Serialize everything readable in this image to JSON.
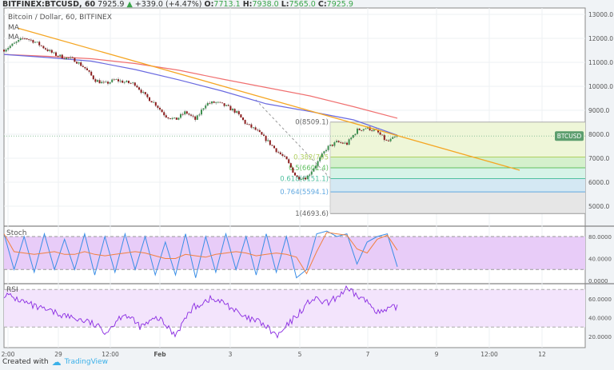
{
  "header": {
    "symbol": "BITFINEX:BTCUSD, 60",
    "last": "7925.9",
    "change": "+339.0 (+4.47%)",
    "o_label": "O:",
    "o": "7713.1",
    "h_label": "H:",
    "h": "7938.0",
    "l_label": "L:",
    "l": "7565.0",
    "c_label": "C:",
    "c": "7925.9"
  },
  "legend": {
    "title": "Bitcoin / Dollar, 60, BITFINEX",
    "ma1": "MA",
    "ma2": "MA"
  },
  "price_badge": "BTCUSD",
  "colors": {
    "up": "#3d8f4f",
    "down": "#8b1c1c",
    "ma_red": "#f07070",
    "ma_blue": "#6a6ae0",
    "trend": "#f5a623",
    "stoch_k": "#3a8ee6",
    "stoch_d": "#f08040",
    "rsi": "#8a2be2",
    "badge": "#5c9e6e"
  },
  "chart_data": [
    {
      "type": "candlestick",
      "title": "Bitcoin / Dollar, 60, BITFINEX",
      "y_ticks": [
        "13000.0",
        "12000.0",
        "11000.0",
        "10000.0",
        "9000.0",
        "8000.0",
        "7000.0",
        "6000.0",
        "5000.0"
      ],
      "ylim": [
        4500,
        13200
      ],
      "x_ticks": [
        "2:00",
        "29",
        "12:00",
        "Feb",
        "3",
        "5",
        "7",
        "9",
        "12:00",
        "12"
      ],
      "close_path": [
        11530,
        11770,
        12030,
        11870,
        11600,
        11330,
        11200,
        11100,
        10770,
        10270,
        10100,
        10270,
        10170,
        10100,
        9600,
        9270,
        8770,
        8600,
        8930,
        8600,
        9270,
        9330,
        9170,
        8930,
        8430,
        8170,
        7770,
        7330,
        6930,
        6200,
        6200,
        6770,
        7430,
        7670,
        7600,
        8170,
        8270,
        8100,
        7670,
        7925.9
      ],
      "ma_slow": [
        11330,
        11250,
        11150,
        10950,
        10670,
        10300,
        9950,
        9600,
        9150,
        8670
      ],
      "ma_fast": [
        11330,
        11200,
        11050,
        10700,
        10270,
        9800,
        9270,
        8950,
        8600,
        7960
      ],
      "trendline": [
        12430,
        6500
      ],
      "fib": [
        {
          "label": "0(8509.1)",
          "ratio": 0,
          "price": 8509.1
        },
        {
          "label": "0.382(705",
          "ratio": 0.382,
          "price": 7051.6
        },
        {
          "label": "0.5(6601.4)",
          "ratio": 0.5,
          "price": 6601.4
        },
        {
          "label": "0.618(6151.1)",
          "ratio": 0.618,
          "price": 6151.1
        },
        {
          "label": "0.764(5594.1)",
          "ratio": 0.764,
          "price": 5594.1
        },
        {
          "label": "1(4693.6)",
          "ratio": 1,
          "price": 4693.6
        }
      ]
    },
    {
      "type": "line",
      "title": "Stoch",
      "y_ticks": [
        "80.0000",
        "40.0000",
        "0.0000"
      ],
      "ylim": [
        0,
        100
      ],
      "k": [
        85,
        20,
        80,
        15,
        85,
        20,
        75,
        20,
        85,
        10,
        80,
        15,
        85,
        20,
        80,
        10,
        70,
        10,
        85,
        5,
        80,
        15,
        85,
        20,
        80,
        10,
        85,
        15,
        80,
        5,
        20,
        85,
        90,
        80,
        85,
        30,
        70,
        80,
        85,
        25
      ]
    },
    {
      "type": "line",
      "title": "RSI",
      "y_ticks": [
        "60.0000",
        "40.0000",
        "20.0000"
      ],
      "ylim": [
        15,
        75
      ],
      "values": [
        65,
        58,
        50,
        45,
        40,
        35,
        25,
        45,
        30,
        40,
        22,
        50,
        60,
        55,
        40,
        35,
        20,
        40,
        60,
        55,
        70,
        60,
        45,
        52
      ]
    }
  ],
  "footer": {
    "created": "Created with",
    "brand": "TradingView"
  }
}
